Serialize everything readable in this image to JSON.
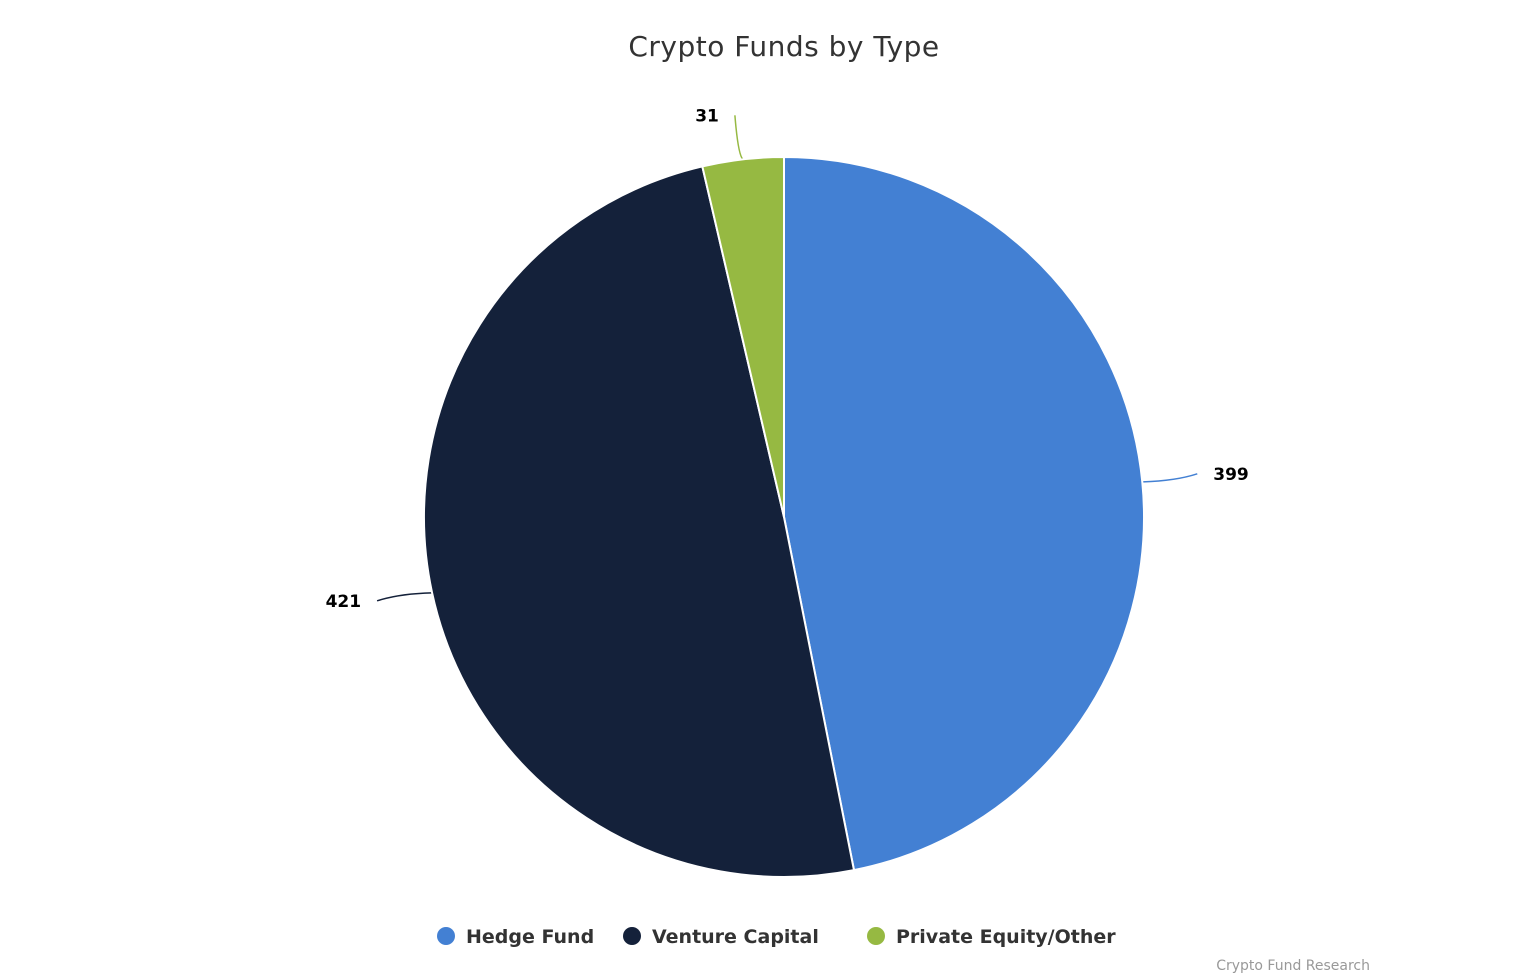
{
  "chart_data": {
    "type": "pie",
    "title": "Crypto Funds by Type",
    "slices": [
      {
        "name": "Hedge Fund",
        "value": 399,
        "label": "399",
        "color": "#4380d3"
      },
      {
        "name": "Venture Capital",
        "value": 421,
        "label": "421",
        "color": "#14213a"
      },
      {
        "name": "Private Equity/Other",
        "value": 31,
        "label": "31",
        "color": "#96b942"
      }
    ],
    "start_angle_deg": 0,
    "direction": "clockwise",
    "legend_position": "bottom",
    "credit": "Crypto Fund Research"
  }
}
